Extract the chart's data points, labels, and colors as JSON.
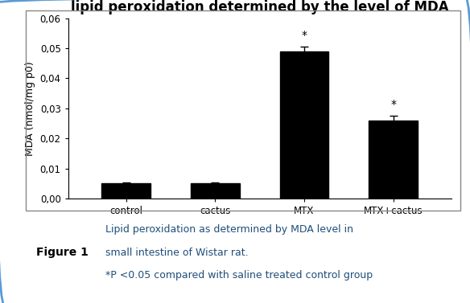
{
  "title": "lipid peroxidation determined by the level of MDA",
  "categories": [
    "control",
    "cactus",
    "MTX",
    "MTX+cactus"
  ],
  "values": [
    0.005,
    0.005,
    0.049,
    0.026
  ],
  "errors": [
    0.0004,
    0.0004,
    0.0015,
    0.0015
  ],
  "bar_color": "#000000",
  "ylabel": "MDA (nmol/mg p0)",
  "ylim": [
    0,
    0.06
  ],
  "yticks": [
    0.0,
    0.01,
    0.02,
    0.03,
    0.04,
    0.05,
    0.06
  ],
  "ytick_labels": [
    "0,00",
    "0,01",
    "0,02",
    "0,03",
    "0,04",
    "0,05",
    "0,06"
  ],
  "significance_indices": [
    2,
    3
  ],
  "sig_label": "*",
  "title_fontsize": 12,
  "label_fontsize": 9,
  "tick_fontsize": 8.5,
  "figure_caption_line1": "Lipid peroxidation as determined by MDA level in",
  "figure_caption_line2": "small intestine of Wistar rat.",
  "figure_caption_line3": "*P <0.05 compared with saline treated control group",
  "figure_label": "Figure 1",
  "figure_label_bg": "#92b4d4",
  "figure_label_text_color": "#000000",
  "outer_bg": "#ffffff",
  "plot_bg": "#ffffff",
  "border_color": "#5b9bd5",
  "chart_border_color": "#888888",
  "caption_text_color": "#1f4e79"
}
